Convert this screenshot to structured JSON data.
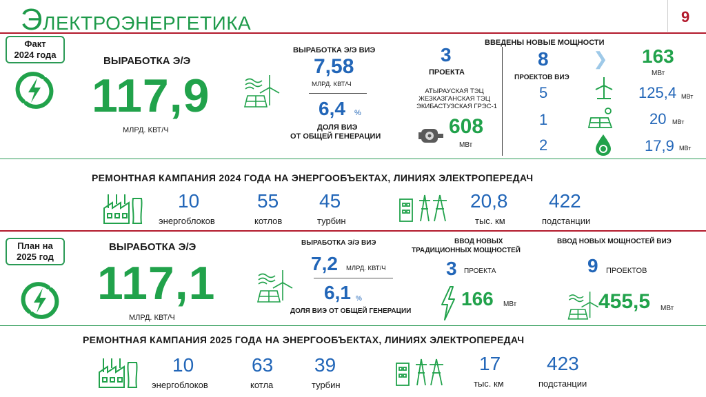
{
  "page": {
    "title_first": "Э",
    "title_rest": "ЛЕКТРОЭНЕРГЕТИКА",
    "page_number": "9",
    "colors": {
      "accent_green": "#21a24b",
      "accent_blue": "#2266b8",
      "rule_red": "#b2182b"
    }
  },
  "fact": {
    "badge_line1": "Факт",
    "badge_line2": "2024 года",
    "production_label": "ВЫРАБОТКА Э/Э",
    "production_value": "117,9",
    "production_unit": "МЛРД. КВТ/Ч",
    "res_label": "ВЫРАБОТКА Э/Э ВИЭ",
    "res_value": "7,58",
    "res_unit": "МЛРД. КВТ/Ч",
    "share_value": "6,4",
    "share_unit": "%",
    "share_label_1": "ДОЛЯ ВИЭ",
    "share_label_2": "ОТ ОБЩЕЙ ГЕНЕРАЦИИ",
    "projects_value": "3",
    "projects_label": "ПРОЕКТА",
    "plants": [
      "АТЫРАУСКАЯ ТЭЦ",
      "ЖЕЗКАЗГАНСКАЯ ТЭЦ",
      "ЭКИБАСТУЗСКАЯ ГРЭС-1"
    ],
    "plants_mw_value": "608",
    "plants_mw_unit": "МВт",
    "new_cap_label": "ВВЕДЕНЫ НОВЫЕ  МОЩНОСТИ",
    "res_projects_value": "8",
    "res_projects_label": "ПРОЕКТОВ ВИЭ",
    "total_mw_value": "163",
    "total_mw_unit": "МВт",
    "breakdown": [
      {
        "count": "5",
        "value": "125,4",
        "unit": "МВт",
        "icon": "wind-turbine-icon"
      },
      {
        "count": "1",
        "value": "20",
        "unit": "МВт",
        "icon": "solar-panel-icon"
      },
      {
        "count": "2",
        "value": "17,9",
        "unit": "МВт",
        "icon": "hydro-drop-icon"
      }
    ]
  },
  "repair2024": {
    "heading": "РЕМОНТНАЯ КАМПАНИЯ 2024 ГОДА НА ЭНЕРГООБЪЕКТАХ, ЛИНИЯХ ЭЛЕКТРОПЕРЕДАЧ",
    "stats": [
      {
        "value": "10",
        "label": "энергоблоков"
      },
      {
        "value": "55",
        "label": "котлов"
      },
      {
        "value": "45",
        "label": "турбин"
      },
      {
        "value": "20,8",
        "label": "тыс. км"
      },
      {
        "value": "422",
        "label": "подстанции"
      }
    ]
  },
  "plan": {
    "badge_line1": "План на",
    "badge_line2": "2025 год",
    "production_label": "ВЫРАБОТКА Э/Э",
    "production_value": "117,1",
    "production_unit": "МЛРД. КВТ/Ч",
    "res_label": "ВЫРАБОТКА Э/Э ВИЭ",
    "res_value": "7,2",
    "res_unit": "МЛРД. КВТ/Ч",
    "share_value": "6,1",
    "share_unit": "%",
    "share_label": "ДОЛЯ ВИЭ ОТ ОБЩЕЙ ГЕНЕРАЦИИ",
    "trad_label_1": "ВВОД НОВЫХ",
    "trad_label_2": "ТРАДИЦИОННЫХ МОЩНОСТЕЙ",
    "trad_projects_value": "3",
    "trad_projects_label": "ПРОЕКТА",
    "trad_mw_value": "166",
    "trad_mw_unit": "МВт",
    "res_new_label": "ВВОД НОВЫХ  МОЩНОСТЕЙ ВИЭ",
    "res_new_projects_value": "9",
    "res_new_projects_label": "ПРОЕКТОВ",
    "res_new_mw_value": "455,5",
    "res_new_mw_unit": "МВт"
  },
  "repair2025": {
    "heading": "РЕМОНТНАЯ КАМПАНИЯ 2025 ГОДА НА ЭНЕРГООБЪЕКТАХ, ЛИНИЯХ ЭЛЕКТРОПЕРЕДАЧ",
    "stats": [
      {
        "value": "10",
        "label": "энергоблоков"
      },
      {
        "value": "63",
        "label": "котла"
      },
      {
        "value": "39",
        "label": "турбин"
      },
      {
        "value": "17",
        "label": "тыс. км"
      },
      {
        "value": "423",
        "label": "подстанции"
      }
    ]
  }
}
